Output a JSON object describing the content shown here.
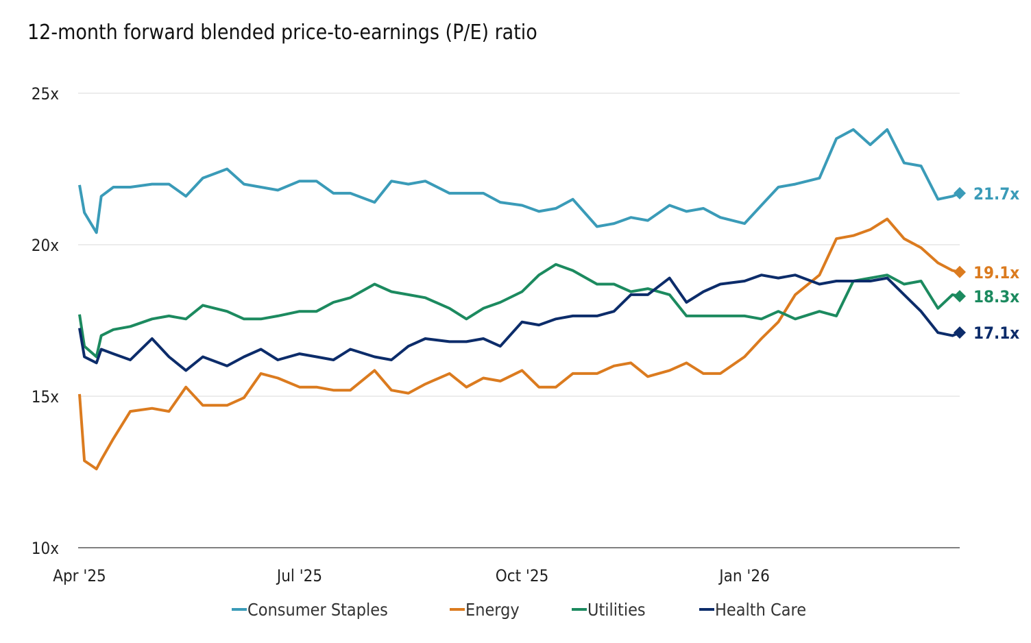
{
  "chart_data": {
    "type": "line",
    "title": "12-month forward blended price-to-earnings (P/E) ratio",
    "xlabel": "",
    "ylabel": "",
    "ylim": [
      10,
      25
    ],
    "xlim": [
      "2025-04-01",
      "2026-03-31"
    ],
    "y_ticks": [
      {
        "value": 25,
        "label": "25x"
      },
      {
        "value": 20,
        "label": "20x"
      },
      {
        "value": 15,
        "label": "15x"
      },
      {
        "value": 10,
        "label": "10x"
      }
    ],
    "x_ticks": [
      {
        "date": "2025-04-01",
        "label": "Apr '25"
      },
      {
        "date": "2025-07-01",
        "label": "Jul '25"
      },
      {
        "date": "2025-10-01",
        "label": "Oct '25"
      },
      {
        "date": "2026-01-01",
        "label": "Jan '26"
      }
    ],
    "grid": "horizontal",
    "legend_position": "bottom",
    "x": [
      "2025-04-01",
      "2025-04-03",
      "2025-04-08",
      "2025-04-10",
      "2025-04-15",
      "2025-04-22",
      "2025-05-01",
      "2025-05-08",
      "2025-05-15",
      "2025-05-22",
      "2025-06-01",
      "2025-06-08",
      "2025-06-15",
      "2025-06-22",
      "2025-07-01",
      "2025-07-08",
      "2025-07-15",
      "2025-07-22",
      "2025-08-01",
      "2025-08-08",
      "2025-08-15",
      "2025-08-22",
      "2025-09-01",
      "2025-09-08",
      "2025-09-15",
      "2025-09-22",
      "2025-10-01",
      "2025-10-08",
      "2025-10-15",
      "2025-10-22",
      "2025-11-01",
      "2025-11-08",
      "2025-11-15",
      "2025-11-22",
      "2025-12-01",
      "2025-12-08",
      "2025-12-15",
      "2025-12-22",
      "2026-01-01",
      "2026-01-08",
      "2026-01-15",
      "2026-01-22",
      "2026-02-01",
      "2026-02-08",
      "2026-02-15",
      "2026-02-22",
      "2026-03-01",
      "2026-03-08",
      "2026-03-15",
      "2026-03-22",
      "2026-03-28",
      "2026-03-31"
    ],
    "series": [
      {
        "name": "Consumer Staples",
        "color": "#3a9bb8",
        "end_label": "21.7x",
        "values": [
          21.97,
          21.06,
          20.4,
          21.6,
          21.9,
          21.9,
          22.0,
          22.0,
          21.6,
          22.2,
          22.5,
          22.0,
          21.9,
          21.8,
          22.1,
          22.1,
          21.7,
          21.7,
          21.4,
          22.1,
          22.0,
          22.1,
          21.7,
          21.7,
          21.7,
          21.4,
          21.3,
          21.1,
          21.2,
          21.5,
          20.6,
          20.7,
          20.9,
          20.8,
          21.3,
          21.1,
          21.2,
          20.9,
          20.7,
          21.3,
          21.9,
          22.0,
          22.2,
          23.5,
          23.8,
          23.3,
          23.8,
          22.7,
          22.6,
          21.5,
          21.6,
          21.7
        ]
      },
      {
        "name": "Energy",
        "color": "#db7b1f",
        "end_label": "19.1x",
        "values": [
          15.07,
          12.87,
          12.6,
          12.9,
          13.6,
          14.5,
          14.6,
          14.5,
          15.3,
          14.7,
          14.7,
          14.95,
          15.75,
          15.6,
          15.3,
          15.3,
          15.2,
          15.2,
          15.85,
          15.2,
          15.1,
          15.4,
          15.75,
          15.3,
          15.6,
          15.5,
          15.85,
          15.3,
          15.3,
          15.75,
          15.75,
          16.0,
          16.1,
          15.65,
          15.85,
          16.1,
          15.75,
          15.75,
          16.3,
          16.9,
          17.45,
          18.35,
          19.0,
          20.2,
          20.3,
          20.5,
          20.85,
          20.2,
          19.9,
          19.4,
          19.15,
          19.1
        ]
      },
      {
        "name": "Utilities",
        "color": "#1c8a5f",
        "end_label": "18.3x",
        "values": [
          17.7,
          16.65,
          16.3,
          17.0,
          17.2,
          17.3,
          17.55,
          17.65,
          17.55,
          18.0,
          17.8,
          17.55,
          17.55,
          17.65,
          17.8,
          17.8,
          18.1,
          18.25,
          18.7,
          18.45,
          18.35,
          18.25,
          17.9,
          17.55,
          17.9,
          18.1,
          18.45,
          19.0,
          19.35,
          19.15,
          18.7,
          18.7,
          18.45,
          18.55,
          18.35,
          17.65,
          17.65,
          17.65,
          17.65,
          17.55,
          17.8,
          17.55,
          17.8,
          17.65,
          18.8,
          18.9,
          19.0,
          18.7,
          18.8,
          17.9,
          18.35,
          18.3
        ]
      },
      {
        "name": "Health Care",
        "color": "#0c2c6a",
        "end_label": "17.1x",
        "values": [
          17.25,
          16.3,
          16.1,
          16.55,
          16.4,
          16.2,
          16.9,
          16.3,
          15.85,
          16.3,
          16.0,
          16.3,
          16.55,
          16.2,
          16.4,
          16.3,
          16.2,
          16.55,
          16.3,
          16.2,
          16.65,
          16.9,
          16.8,
          16.8,
          16.9,
          16.65,
          17.45,
          17.35,
          17.55,
          17.65,
          17.65,
          17.8,
          18.35,
          18.35,
          18.9,
          18.1,
          18.45,
          18.7,
          18.8,
          19.0,
          18.9,
          19.0,
          18.7,
          18.8,
          18.8,
          18.8,
          18.9,
          18.35,
          17.8,
          17.1,
          17.0,
          17.1
        ]
      }
    ]
  }
}
